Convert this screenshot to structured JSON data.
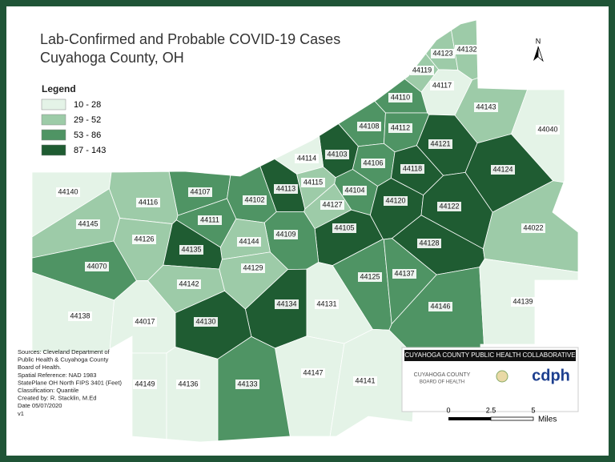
{
  "title_lines": [
    "Lab-Confirmed and Probable COVID-19 Cases",
    "Cuyahoga County, OH"
  ],
  "legend": {
    "title": "Legend",
    "items": [
      {
        "label": "10 - 28",
        "color": "#e4f3e7"
      },
      {
        "label": "29 - 52",
        "color": "#9dcba8"
      },
      {
        "label": "53 - 86",
        "color": "#4f9464"
      },
      {
        "label": "87 - 143",
        "color": "#1f5c32"
      }
    ]
  },
  "zips": [
    {
      "label": "44123",
      "color": "#9dcba8"
    },
    {
      "label": "44132",
      "color": "#9dcba8"
    },
    {
      "label": "44119",
      "color": "#9dcba8"
    },
    {
      "label": "44117",
      "color": "#e4f3e7"
    },
    {
      "label": "44110",
      "color": "#4f9464"
    },
    {
      "label": "44143",
      "color": "#9dcba8"
    },
    {
      "label": "44040",
      "color": "#e4f3e7"
    },
    {
      "label": "44108",
      "color": "#4f9464"
    },
    {
      "label": "44112",
      "color": "#4f9464"
    },
    {
      "label": "44121",
      "color": "#1f5c32"
    },
    {
      "label": "44103",
      "color": "#1f5c32"
    },
    {
      "label": "44114",
      "color": "#e4f3e7"
    },
    {
      "label": "44106",
      "color": "#4f9464"
    },
    {
      "label": "44118",
      "color": "#1f5c32"
    },
    {
      "label": "44124",
      "color": "#1f5c32"
    },
    {
      "label": "44140",
      "color": "#e4f3e7"
    },
    {
      "label": "44107",
      "color": "#4f9464"
    },
    {
      "label": "44113",
      "color": "#1f5c32"
    },
    {
      "label": "44115",
      "color": "#9dcba8"
    },
    {
      "label": "44104",
      "color": "#4f9464"
    },
    {
      "label": "44102",
      "color": "#4f9464"
    },
    {
      "label": "44116",
      "color": "#9dcba8"
    },
    {
      "label": "44127",
      "color": "#9dcba8"
    },
    {
      "label": "44120",
      "color": "#1f5c32"
    },
    {
      "label": "44122",
      "color": "#1f5c32"
    },
    {
      "label": "44145",
      "color": "#9dcba8"
    },
    {
      "label": "44111",
      "color": "#4f9464"
    },
    {
      "label": "44105",
      "color": "#1f5c32"
    },
    {
      "label": "44109",
      "color": "#4f9464"
    },
    {
      "label": "44126",
      "color": "#9dcba8"
    },
    {
      "label": "44144",
      "color": "#9dcba8"
    },
    {
      "label": "44128",
      "color": "#1f5c32"
    },
    {
      "label": "44022",
      "color": "#9dcba8"
    },
    {
      "label": "44135",
      "color": "#1f5c32"
    },
    {
      "label": "44070",
      "color": "#4f9464"
    },
    {
      "label": "44129",
      "color": "#9dcba8"
    },
    {
      "label": "44125",
      "color": "#4f9464"
    },
    {
      "label": "44137",
      "color": "#4f9464"
    },
    {
      "label": "44142",
      "color": "#9dcba8"
    },
    {
      "label": "44134",
      "color": "#1f5c32"
    },
    {
      "label": "44131",
      "color": "#e4f3e7"
    },
    {
      "label": "44146",
      "color": "#4f9464"
    },
    {
      "label": "44139",
      "color": "#e4f3e7"
    },
    {
      "label": "44138",
      "color": "#e4f3e7"
    },
    {
      "label": "44017",
      "color": "#e4f3e7"
    },
    {
      "label": "44130",
      "color": "#1f5c32"
    },
    {
      "label": "44147",
      "color": "#e4f3e7"
    },
    {
      "label": "44149",
      "color": "#e4f3e7"
    },
    {
      "label": "44136",
      "color": "#e4f3e7"
    },
    {
      "label": "44133",
      "color": "#4f9464"
    },
    {
      "label": "44141",
      "color": "#e4f3e7"
    }
  ],
  "sources": [
    "Sources: Cleveland Department of",
    "Public Health & Cuyahoga County",
    "Board of Health.",
    "Spatial Reference: NAD 1983",
    "StatePlane OH North FIPS 3401 (Feet)",
    "Classification: Quantile",
    "Created by: R. Stacklin, M.Ed",
    "Date 05/07/2020",
    "v1"
  ],
  "logo": {
    "banner": "CUYAHOGA COUNTY PUBLIC HEALTH COLLABORATIVE",
    "board": [
      "CUYAHOGA COUNTY",
      "BOARD OF HEALTH"
    ],
    "cdph": "cdph"
  },
  "scale": {
    "ticks": [
      "0",
      "2.5",
      "5"
    ],
    "unit": "Miles"
  },
  "north": "N"
}
